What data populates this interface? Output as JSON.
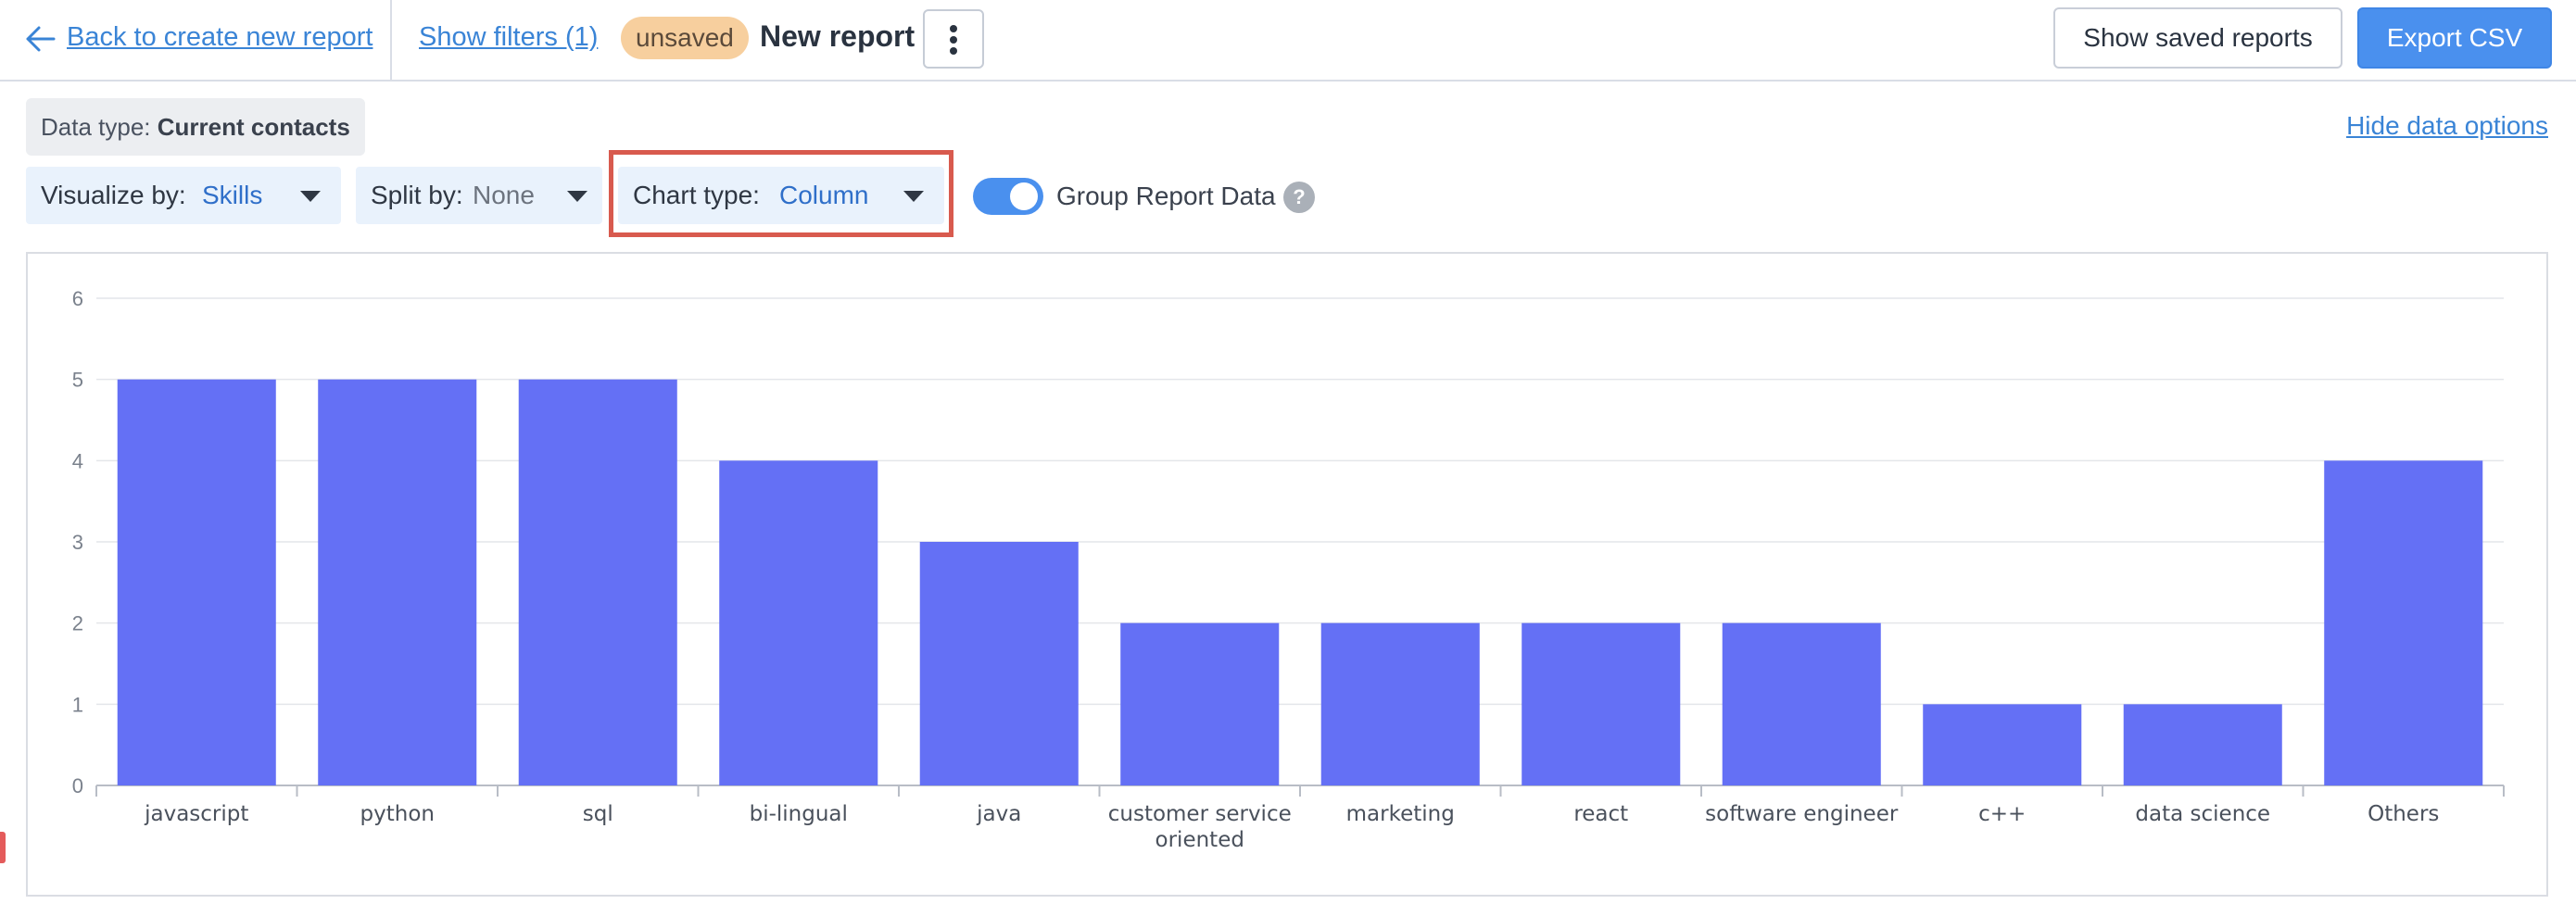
{
  "header": {
    "back_label": "Back to create new report",
    "filters_label": "Show filters (1)",
    "status_badge": "unsaved",
    "report_title": "New report",
    "saved_reports_label": "Show saved reports",
    "export_label": "Export CSV"
  },
  "data_options": {
    "data_type_label": "Data type:",
    "data_type_value": "Current contacts",
    "hide_label": "Hide data options"
  },
  "controls": {
    "visualize_label": "Visualize by:",
    "visualize_value": "Skills",
    "split_label": "Split by:",
    "split_value": "None",
    "chart_type_label": "Chart type:",
    "chart_type_value": "Column",
    "group_label": "Group Report Data",
    "group_enabled": true,
    "help_icon": "?"
  },
  "colors": {
    "bar": "#6470f5",
    "accent": "#4a90ee",
    "link": "#3a84d6",
    "highlight": "#d85a4e"
  },
  "chart_data": {
    "type": "bar",
    "categories": [
      "javascript",
      "python",
      "sql",
      "bi-lingual",
      "java",
      "customer service oriented",
      "marketing",
      "react",
      "software engineer",
      "c++",
      "data science",
      "Others"
    ],
    "category_lines": [
      [
        "javascript"
      ],
      [
        "python"
      ],
      [
        "sql"
      ],
      [
        "bi-lingual"
      ],
      [
        "java"
      ],
      [
        "customer service",
        "oriented"
      ],
      [
        "marketing"
      ],
      [
        "react"
      ],
      [
        "software engineer"
      ],
      [
        "c++"
      ],
      [
        "data science"
      ],
      [
        "Others"
      ]
    ],
    "values": [
      5,
      5,
      5,
      4,
      3,
      2,
      2,
      2,
      2,
      1,
      1,
      4
    ],
    "ylim": [
      0,
      6
    ],
    "yticks": [
      "0",
      "1",
      "2",
      "3",
      "4",
      "5",
      "6"
    ],
    "grid": true,
    "title": "",
    "xlabel": "",
    "ylabel": ""
  }
}
